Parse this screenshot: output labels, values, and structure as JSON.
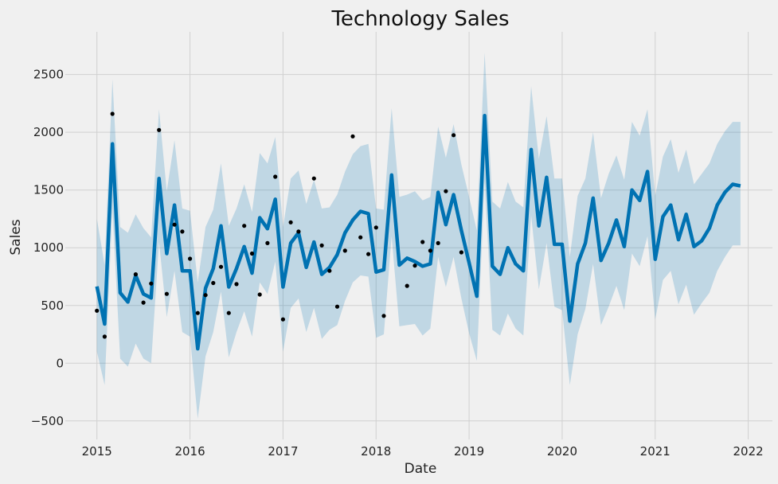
{
  "chart_data": {
    "type": "line",
    "title": "Technology Sales",
    "xlabel": "Date",
    "ylabel": "Sales",
    "xlim": [
      2014.66,
      2022.26
    ],
    "ylim": [
      -660,
      2870
    ],
    "x_ticks": [
      2015,
      2016,
      2017,
      2018,
      2019,
      2020,
      2021,
      2022
    ],
    "x_tick_labels": [
      "2015",
      "2016",
      "2017",
      "2018",
      "2019",
      "2020",
      "2021",
      "2022"
    ],
    "y_ticks": [
      -500,
      0,
      500,
      1000,
      1500,
      2000,
      2500
    ],
    "y_tick_labels": [
      "−500",
      "0",
      "500",
      "1000",
      "1500",
      "2000",
      "2500"
    ],
    "grid": true,
    "colors": {
      "forecast": "#0072b2",
      "interval": "#0072b2",
      "observed": "#000000",
      "grid": "#d0d0d0",
      "background": "#f0f0f0"
    },
    "series": [
      {
        "kind": "observed",
        "x": [
          2015.0,
          2015.083,
          2015.167,
          2015.417,
          2015.5,
          2015.583,
          2015.667,
          2015.75,
          2015.833,
          2015.917,
          2016.0,
          2016.083,
          2016.167,
          2016.25,
          2016.333,
          2016.417,
          2016.5,
          2016.583,
          2016.667,
          2016.75,
          2016.833,
          2016.917,
          2017.0,
          2017.083,
          2017.167,
          2017.333,
          2017.417,
          2017.5,
          2017.583,
          2017.667,
          2017.75,
          2017.833,
          2017.917,
          2018.0,
          2018.083,
          2018.333,
          2018.417,
          2018.5,
          2018.583,
          2018.667,
          2018.75,
          2018.833,
          2018.917
        ],
        "y": [
          455,
          230,
          2160,
          770,
          525,
          690,
          2020,
          600,
          1200,
          1140,
          905,
          435,
          590,
          695,
          835,
          435,
          685,
          1190,
          950,
          595,
          1040,
          1615,
          380,
          1220,
          1140,
          1600,
          1020,
          800,
          490,
          975,
          1965,
          1090,
          945,
          1175,
          410,
          670,
          845,
          1050,
          975,
          1040,
          1490,
          1975,
          960
        ]
      },
      {
        "kind": "forecast",
        "x": [
          2015.0,
          2015.083,
          2015.167,
          2015.25,
          2015.333,
          2015.417,
          2015.5,
          2015.583,
          2015.667,
          2015.75,
          2015.833,
          2015.917,
          2016.0,
          2016.083,
          2016.167,
          2016.25,
          2016.333,
          2016.417,
          2016.5,
          2016.583,
          2016.667,
          2016.75,
          2016.833,
          2016.917,
          2017.0,
          2017.083,
          2017.167,
          2017.25,
          2017.333,
          2017.417,
          2017.5,
          2017.583,
          2017.667,
          2017.75,
          2017.833,
          2017.917,
          2018.0,
          2018.083,
          2018.167,
          2018.25,
          2018.333,
          2018.417,
          2018.5,
          2018.583,
          2018.667,
          2018.75,
          2018.833,
          2018.917,
          2019.0,
          2019.083,
          2019.167,
          2019.25,
          2019.333,
          2019.417,
          2019.5,
          2019.583,
          2019.667,
          2019.75,
          2019.833,
          2019.917,
          2020.0,
          2020.083,
          2020.167,
          2020.25,
          2020.333,
          2020.417,
          2020.5,
          2020.583,
          2020.667,
          2020.75,
          2020.833,
          2020.917,
          2021.0,
          2021.083,
          2021.167,
          2021.25,
          2021.333,
          2021.417,
          2021.5,
          2021.583,
          2021.667,
          2021.75,
          2021.833,
          2021.917
        ],
        "y": [
          665,
          340,
          1900,
          610,
          530,
          760,
          600,
          565,
          1600,
          950,
          1370,
          800,
          800,
          125,
          650,
          820,
          1190,
          660,
          820,
          1010,
          780,
          1260,
          1165,
          1420,
          660,
          1040,
          1130,
          830,
          1050,
          770,
          830,
          940,
          1130,
          1240,
          1315,
          1295,
          790,
          810,
          1630,
          850,
          910,
          880,
          840,
          860,
          1480,
          1200,
          1460,
          1150,
          870,
          580,
          2145,
          840,
          770,
          1000,
          860,
          800,
          1850,
          1190,
          1610,
          1030,
          1030,
          365,
          860,
          1040,
          1430,
          890,
          1040,
          1240,
          1010,
          1500,
          1410,
          1660,
          900,
          1270,
          1370,
          1070,
          1290,
          1010,
          1060,
          1170,
          1370,
          1480,
          1550,
          1535
        ]
      },
      {
        "kind": "interval_upper",
        "x": [
          2015.0,
          2015.083,
          2015.167,
          2015.25,
          2015.333,
          2015.417,
          2015.5,
          2015.583,
          2015.667,
          2015.75,
          2015.833,
          2015.917,
          2016.0,
          2016.083,
          2016.167,
          2016.25,
          2016.333,
          2016.417,
          2016.5,
          2016.583,
          2016.667,
          2016.75,
          2016.833,
          2016.917,
          2017.0,
          2017.083,
          2017.167,
          2017.25,
          2017.333,
          2017.417,
          2017.5,
          2017.583,
          2017.667,
          2017.75,
          2017.833,
          2017.917,
          2018.0,
          2018.083,
          2018.167,
          2018.25,
          2018.333,
          2018.417,
          2018.5,
          2018.583,
          2018.667,
          2018.75,
          2018.833,
          2018.917,
          2019.0,
          2019.083,
          2019.167,
          2019.25,
          2019.333,
          2019.417,
          2019.5,
          2019.583,
          2019.667,
          2019.75,
          2019.833,
          2019.917,
          2020.0,
          2020.083,
          2020.167,
          2020.25,
          2020.333,
          2020.417,
          2020.5,
          2020.583,
          2020.667,
          2020.75,
          2020.833,
          2020.917,
          2021.0,
          2021.083,
          2021.167,
          2021.25,
          2021.333,
          2021.417,
          2021.5,
          2021.583,
          2021.667,
          2021.75,
          2021.833,
          2021.917
        ],
        "y": [
          1250,
          850,
          2460,
          1180,
          1130,
          1290,
          1170,
          1090,
          2200,
          1490,
          1930,
          1340,
          1320,
          700,
          1180,
          1330,
          1730,
          1190,
          1340,
          1550,
          1310,
          1820,
          1730,
          1960,
          1180,
          1600,
          1670,
          1380,
          1590,
          1340,
          1350,
          1460,
          1660,
          1810,
          1880,
          1900,
          1340,
          1330,
          2210,
          1440,
          1460,
          1490,
          1410,
          1440,
          2050,
          1780,
          2070,
          1720,
          1440,
          1150,
          2690,
          1400,
          1340,
          1570,
          1400,
          1350,
          2400,
          1770,
          2140,
          1600,
          1600,
          920,
          1450,
          1600,
          2000,
          1430,
          1640,
          1800,
          1590,
          2090,
          1970,
          2200,
          1450,
          1790,
          1940,
          1650,
          1850,
          1550,
          1640,
          1730,
          1900,
          2010,
          2090,
          2090
        ]
      },
      {
        "kind": "interval_lower",
        "x": [
          2015.0,
          2015.083,
          2015.167,
          2015.25,
          2015.333,
          2015.417,
          2015.5,
          2015.583,
          2015.667,
          2015.75,
          2015.833,
          2015.917,
          2016.0,
          2016.083,
          2016.167,
          2016.25,
          2016.333,
          2016.417,
          2016.5,
          2016.583,
          2016.667,
          2016.75,
          2016.833,
          2016.917,
          2017.0,
          2017.083,
          2017.167,
          2017.25,
          2017.333,
          2017.417,
          2017.5,
          2017.583,
          2017.667,
          2017.75,
          2017.833,
          2017.917,
          2018.0,
          2018.083,
          2018.167,
          2018.25,
          2018.333,
          2018.417,
          2018.5,
          2018.583,
          2018.667,
          2018.75,
          2018.833,
          2018.917,
          2019.0,
          2019.083,
          2019.167,
          2019.25,
          2019.333,
          2019.417,
          2019.5,
          2019.583,
          2019.667,
          2019.75,
          2019.833,
          2019.917,
          2020.0,
          2020.083,
          2020.167,
          2020.25,
          2020.333,
          2020.417,
          2020.5,
          2020.583,
          2020.667,
          2020.75,
          2020.833,
          2020.917,
          2021.0,
          2021.083,
          2021.167,
          2021.25,
          2021.333,
          2021.417,
          2021.5,
          2021.583,
          2021.667,
          2021.75,
          2021.833,
          2021.917
        ],
        "y": [
          100,
          -190,
          1340,
          40,
          -30,
          170,
          40,
          0,
          1050,
          400,
          800,
          270,
          230,
          -480,
          60,
          270,
          620,
          50,
          270,
          450,
          230,
          700,
          600,
          880,
          100,
          480,
          560,
          270,
          480,
          210,
          290,
          330,
          540,
          700,
          760,
          750,
          220,
          250,
          1100,
          320,
          330,
          340,
          240,
          300,
          920,
          660,
          920,
          560,
          260,
          20,
          1580,
          290,
          240,
          430,
          300,
          240,
          1280,
          640,
          1040,
          490,
          460,
          -190,
          250,
          470,
          860,
          330,
          490,
          670,
          460,
          950,
          840,
          1100,
          380,
          720,
          800,
          510,
          680,
          420,
          520,
          610,
          800,
          920,
          1020,
          1020
        ]
      }
    ]
  }
}
